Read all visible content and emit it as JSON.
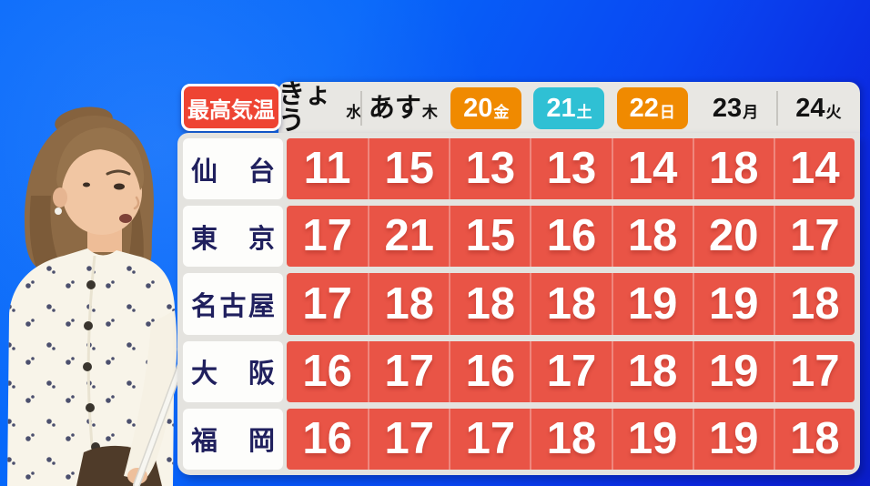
{
  "title_badge": "最高気温",
  "day_headers": [
    {
      "main": "きょう",
      "sub": "水",
      "highlight": "none"
    },
    {
      "main": "あす",
      "sub": "木",
      "highlight": "none"
    },
    {
      "main": "20",
      "sub": "金",
      "highlight": "orange"
    },
    {
      "main": "21",
      "sub": "土",
      "highlight": "cyan"
    },
    {
      "main": "22",
      "sub": "日",
      "highlight": "orange"
    },
    {
      "main": "23",
      "sub": "月",
      "highlight": "none"
    },
    {
      "main": "24",
      "sub": "火",
      "highlight": "none"
    }
  ],
  "rows": [
    {
      "city": "仙台",
      "temps": [
        "11",
        "15",
        "13",
        "13",
        "14",
        "18",
        "14"
      ]
    },
    {
      "city": "東京",
      "temps": [
        "17",
        "21",
        "15",
        "16",
        "18",
        "20",
        "17"
      ]
    },
    {
      "city": "名古屋",
      "temps": [
        "17",
        "18",
        "18",
        "18",
        "19",
        "19",
        "18"
      ]
    },
    {
      "city": "大阪",
      "temps": [
        "16",
        "17",
        "16",
        "17",
        "18",
        "19",
        "17"
      ]
    },
    {
      "city": "福岡",
      "temps": [
        "16",
        "17",
        "17",
        "18",
        "19",
        "19",
        "18"
      ]
    }
  ],
  "colors": {
    "background_blue_top": "#0769fb",
    "background_blue_bottom": "#0a1dc9",
    "panel_gray": "#e4e3df",
    "header_strip_gray": "#e8e7e3",
    "temp_cell_red": "#e95446",
    "title_badge_red": "#ee4433",
    "friday_sunday_orange": "#f08a00",
    "saturday_cyan": "#2fc0d4",
    "city_label_navy": "#20205e",
    "row_label_white": "#fdfdfb"
  },
  "scene": {
    "presenter": "female weather presenter in cream floral cardigan holding a white pointer stick with ball tip"
  },
  "chart_data": {
    "type": "table",
    "title": "最高気温",
    "columns": [
      "きょう(水)",
      "あす(木)",
      "20(金)",
      "21(土)",
      "22(日)",
      "23(月)",
      "24(火)"
    ],
    "rows": [
      {
        "city": "仙台",
        "values": [
          11,
          15,
          13,
          13,
          14,
          18,
          14
        ]
      },
      {
        "city": "東京",
        "values": [
          17,
          21,
          15,
          16,
          18,
          20,
          17
        ]
      },
      {
        "city": "名古屋",
        "values": [
          17,
          18,
          18,
          18,
          19,
          19,
          18
        ]
      },
      {
        "city": "大阪",
        "values": [
          16,
          17,
          16,
          17,
          18,
          19,
          17
        ]
      },
      {
        "city": "福岡",
        "values": [
          16,
          17,
          17,
          18,
          19,
          19,
          18
        ]
      }
    ]
  }
}
